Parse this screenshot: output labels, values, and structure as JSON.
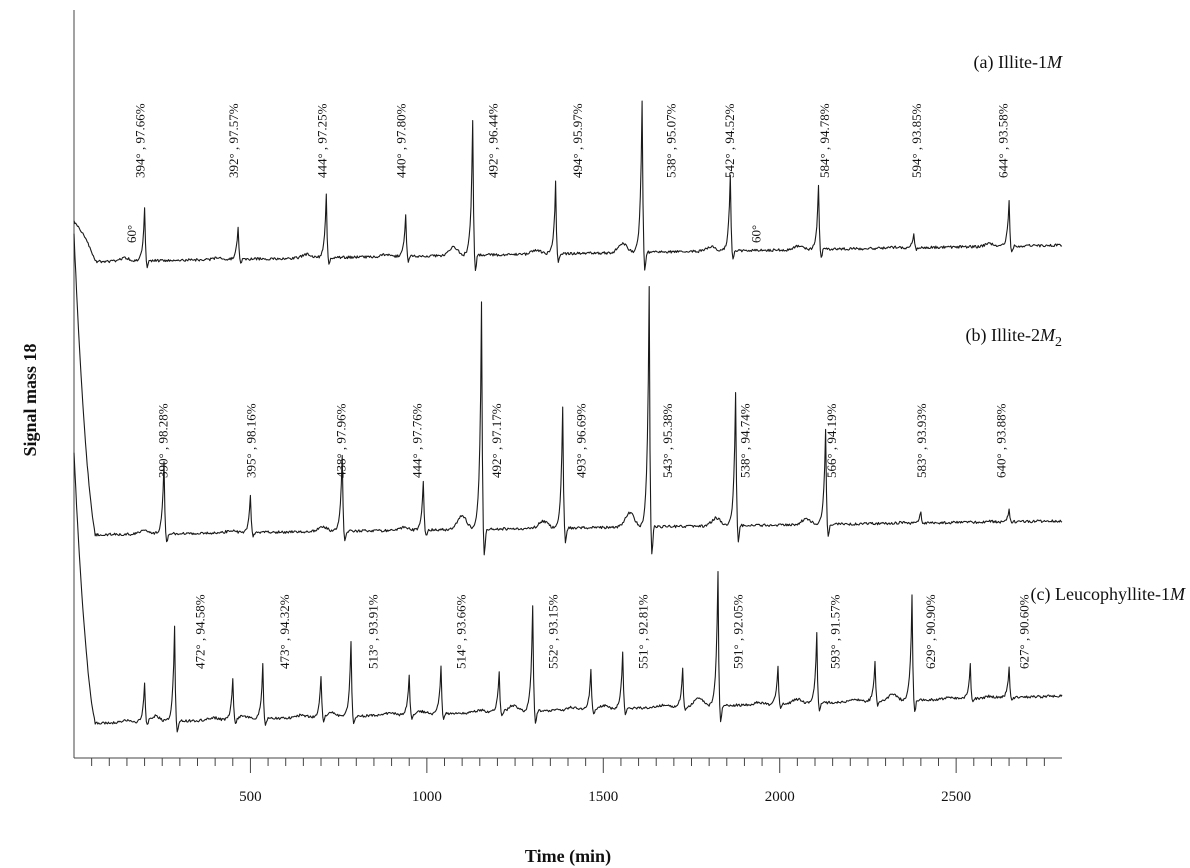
{
  "chart_data": {
    "type": "line",
    "title": "",
    "xlabel": "Time (min)",
    "ylabel": "Signal mass 18",
    "xlim": [
      0,
      2800
    ],
    "xticks_major": [
      500,
      1000,
      1500,
      2000,
      2500
    ],
    "xticks_minor_step": 50,
    "grid": false,
    "series": [
      {
        "name": "(a) Illite-1",
        "name_suffix": "M",
        "peak_times": [
          200,
          465,
          715,
          940,
          1130,
          1365,
          1610,
          1860,
          2110,
          2380,
          2650
        ],
        "peak_heights": [
          0.35,
          0.22,
          0.42,
          0.28,
          0.9,
          0.48,
          1.0,
          0.5,
          0.43,
          0.1,
          0.3
        ],
        "annotations": [
          {
            "text": "394° , 97.66%",
            "time": 200
          },
          {
            "text": "392° , 97.57%",
            "time": 465
          },
          {
            "text": "444° , 97.25%",
            "time": 715
          },
          {
            "text": "440° , 97.80%",
            "time": 940
          },
          {
            "text": "492° , 96.44%",
            "time": 1200
          },
          {
            "text": "494° , 95.97%",
            "time": 1440
          },
          {
            "text": "538° , 95.07%",
            "time": 1705
          },
          {
            "text": "542° , 94.52%",
            "time": 1870
          },
          {
            "text": "584° , 94.78%",
            "time": 2140
          },
          {
            "text": "594° , 93.85%",
            "time": 2400
          },
          {
            "text": "644° , 93.58%",
            "time": 2645
          },
          {
            "text": "60°",
            "time": 175
          },
          {
            "text": "60°",
            "time": 1945
          }
        ]
      },
      {
        "name": "(b) Illite-2",
        "name_suffix": "M",
        "name_subscript": "2",
        "peak_times": [
          255,
          500,
          760,
          990,
          1155,
          1385,
          1630,
          1875,
          2130,
          2400,
          2650
        ],
        "peak_heights": [
          0.3,
          0.15,
          0.32,
          0.2,
          0.95,
          0.5,
          1.0,
          0.55,
          0.4,
          0.05,
          0.05
        ],
        "annotations": [
          {
            "text": "390° , 98.28%",
            "time": 265
          },
          {
            "text": "395° , 98.16%",
            "time": 515
          },
          {
            "text": "438° , 97.96%",
            "time": 770
          },
          {
            "text": "444° , 97.76%",
            "time": 985
          },
          {
            "text": "492° , 97.17%",
            "time": 1210
          },
          {
            "text": "493° , 96.69%",
            "time": 1450
          },
          {
            "text": "543° , 95.38%",
            "time": 1695
          },
          {
            "text": "538° , 94.74%",
            "time": 1915
          },
          {
            "text": "566° , 94.19%",
            "time": 2160
          },
          {
            "text": "583° , 93.93%",
            "time": 2415
          },
          {
            "text": "640° , 93.88%",
            "time": 2640
          }
        ]
      },
      {
        "name": "(c) Leucophyllite-1",
        "name_suffix": "M",
        "peak_times": [
          200,
          285,
          450,
          535,
          700,
          785,
          950,
          1040,
          1205,
          1300,
          1465,
          1555,
          1725,
          1825,
          1995,
          2105,
          2270,
          2375,
          2540,
          2650
        ],
        "peak_heights": [
          0.28,
          0.7,
          0.3,
          0.4,
          0.3,
          0.55,
          0.3,
          0.35,
          0.3,
          0.78,
          0.3,
          0.42,
          0.28,
          1.0,
          0.28,
          0.52,
          0.3,
          0.78,
          0.25,
          0.22
        ],
        "annotations": [
          {
            "text": "472° , 94.58%",
            "time": 370
          },
          {
            "text": "473° , 94.32%",
            "time": 610
          },
          {
            "text": "513° , 93.91%",
            "time": 860
          },
          {
            "text": "514° , 93.66%",
            "time": 1110
          },
          {
            "text": "552° , 93.15%",
            "time": 1370
          },
          {
            "text": "551° , 92.81%",
            "time": 1625
          },
          {
            "text": "591° , 92.05%",
            "time": 1895
          },
          {
            "text": "593° , 91.57%",
            "time": 2170
          },
          {
            "text": "629° , 90.90%",
            "time": 2440
          },
          {
            "text": "627° , 90.60%",
            "time": 2705
          }
        ]
      }
    ]
  }
}
